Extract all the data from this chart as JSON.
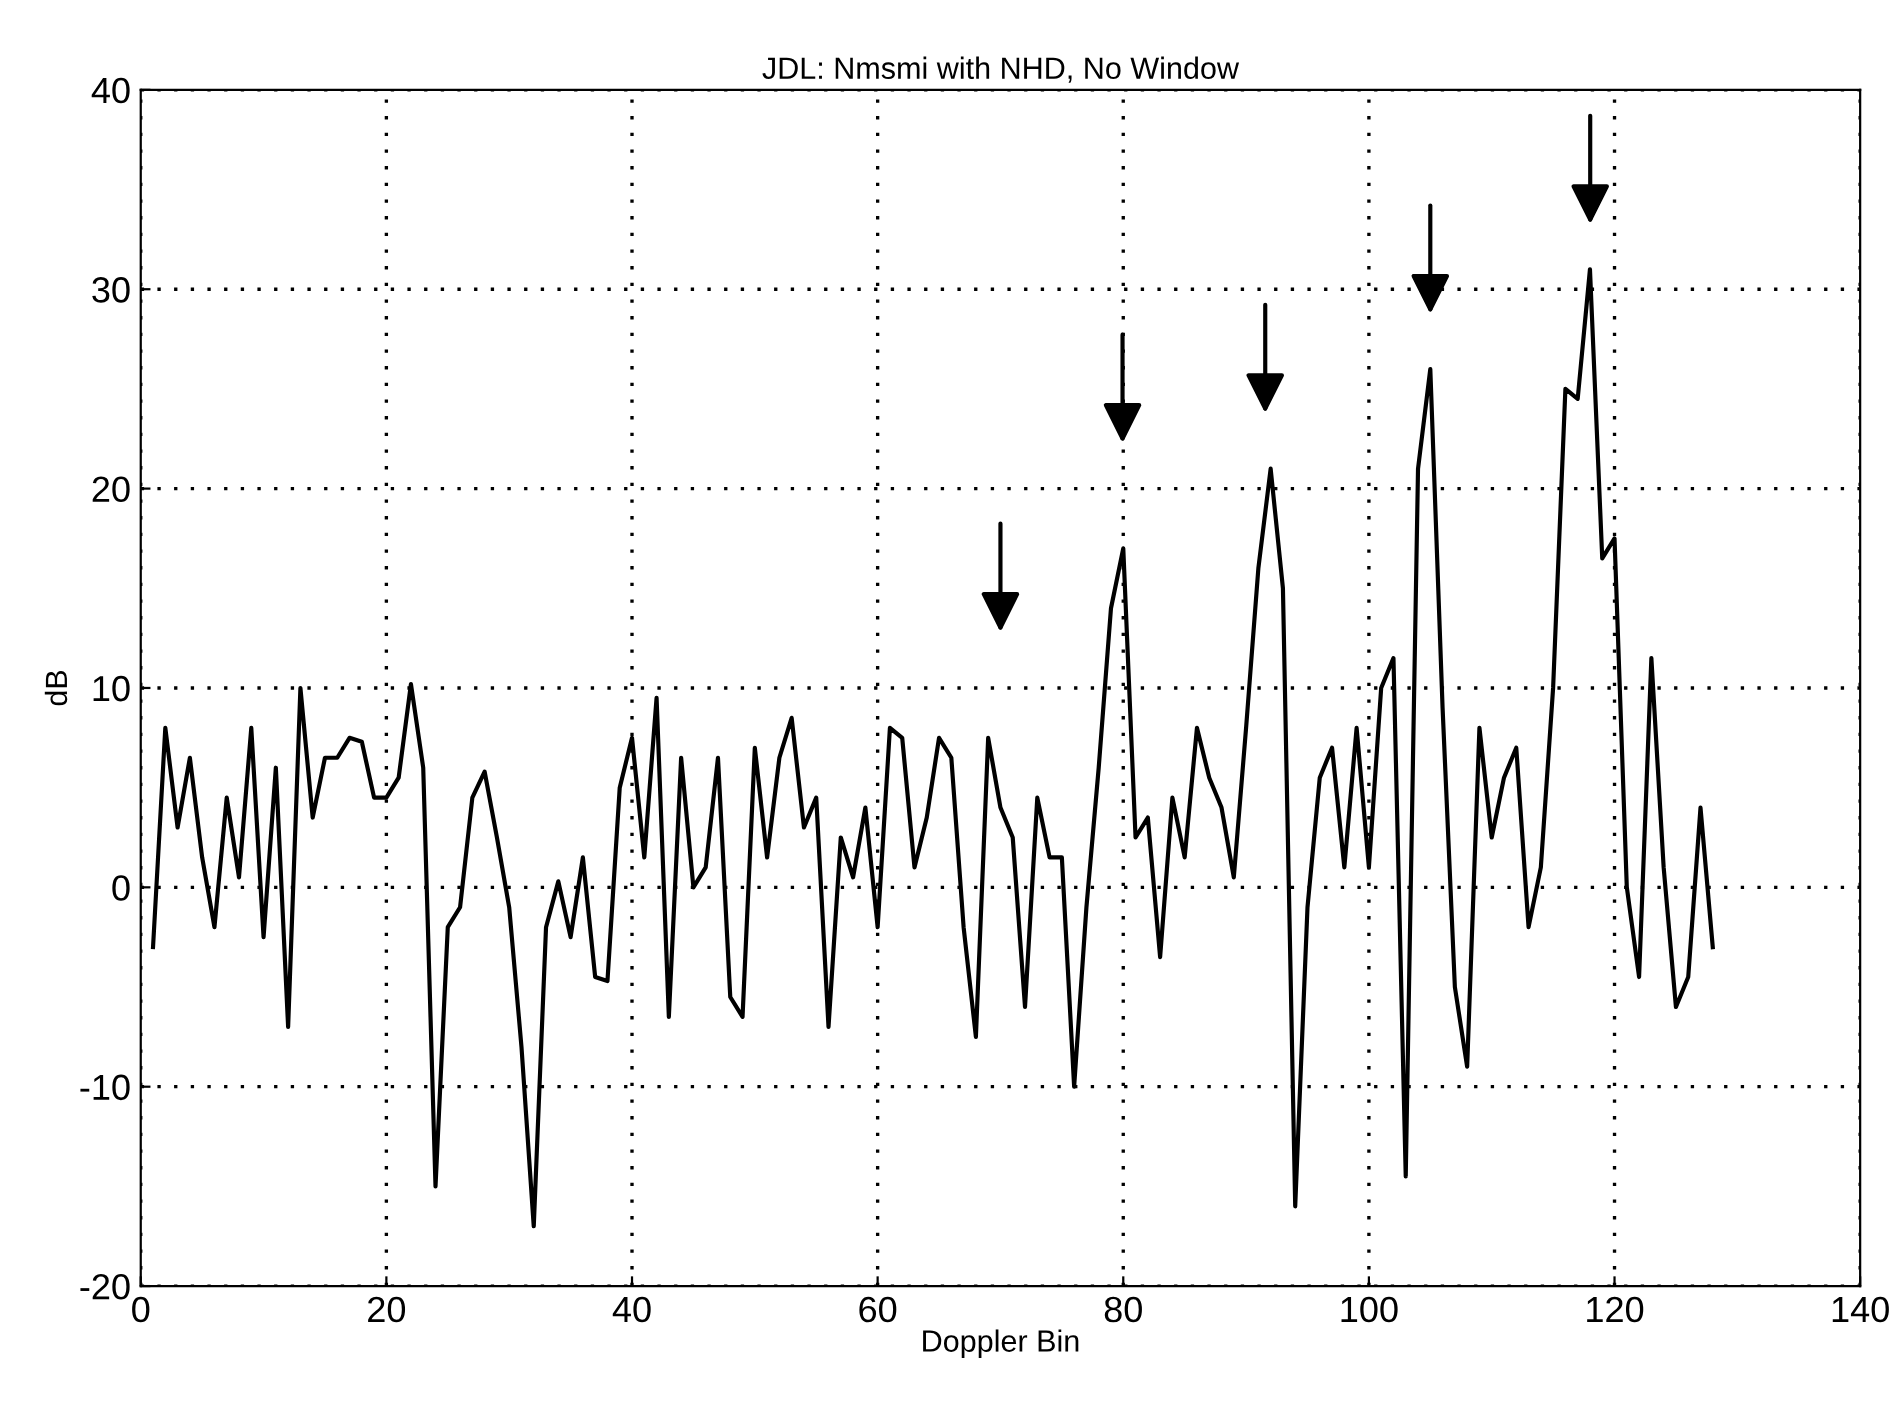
{
  "chart_data": {
    "type": "line",
    "title": "JDL: Nmsmi with NHD, No Window",
    "xlabel": "Doppler Bin",
    "ylabel": "dB",
    "x": [
      1,
      2,
      3,
      4,
      5,
      6,
      7,
      8,
      9,
      10,
      11,
      12,
      13,
      14,
      15,
      16,
      17,
      18,
      19,
      20,
      21,
      22,
      23,
      24,
      25,
      26,
      27,
      28,
      29,
      30,
      31,
      32,
      33,
      34,
      35,
      36,
      37,
      38,
      39,
      40,
      41,
      42,
      43,
      44,
      45,
      46,
      47,
      48,
      49,
      50,
      51,
      52,
      53,
      54,
      55,
      56,
      57,
      58,
      59,
      60,
      61,
      62,
      63,
      64,
      65,
      66,
      67,
      68,
      69,
      70,
      71,
      72,
      73,
      74,
      75,
      76,
      77,
      78,
      79,
      80,
      81,
      82,
      83,
      84,
      85,
      86,
      87,
      88,
      89,
      90,
      91,
      92,
      93,
      94,
      95,
      96,
      97,
      98,
      99,
      100,
      101,
      102,
      103,
      104,
      105,
      106,
      107,
      108,
      109,
      110,
      111,
      112,
      113,
      114,
      115,
      116,
      117,
      118,
      119,
      120,
      121,
      122,
      123,
      124,
      125,
      126,
      127,
      128
    ],
    "series": [
      {
        "color": "#000000",
        "values": [
          -3,
          8,
          3,
          6.5,
          1.5,
          -2,
          4.5,
          0.5,
          8,
          -2.5,
          6,
          -7,
          10,
          3.5,
          6.5,
          6.5,
          7.5,
          7.3,
          4.5,
          4.5,
          5.5,
          10.2,
          6,
          -15,
          -2,
          -1,
          4.5,
          5.8,
          2.5,
          -1,
          -8,
          -17,
          -2,
          0.3,
          -2.5,
          1.5,
          -4.5,
          -4.7,
          5,
          7.5,
          1.5,
          9.5,
          -6.5,
          6.5,
          0,
          1,
          6.5,
          -5.5,
          -6.5,
          7,
          1.5,
          6.5,
          8.5,
          3,
          4.5,
          -7,
          2.5,
          0.5,
          4,
          -2,
          8,
          7.5,
          1,
          3.5,
          7.5,
          6.5,
          -2,
          -7.5,
          7.5,
          4,
          2.5,
          -6,
          4.5,
          1.5,
          1.5,
          -10,
          -1,
          6,
          14,
          17,
          2.5,
          3.5,
          -3.5,
          4.5,
          1.5,
          8,
          5.5,
          4,
          0.5,
          8,
          16,
          21,
          15,
          -16,
          -1,
          5.5,
          7,
          1,
          8,
          1,
          10,
          11.5,
          -14.5,
          21,
          26,
          9,
          -5,
          -9,
          8,
          2.5,
          5.5,
          7,
          -2,
          1,
          10,
          25,
          24.5,
          31,
          16.5,
          17.5,
          0,
          -4.5,
          11.5,
          1,
          -6,
          -4.5,
          4,
          -3
        ]
      }
    ],
    "xlim": [
      0,
      140
    ],
    "xticks": [
      0,
      20,
      40,
      60,
      80,
      100,
      120,
      140
    ],
    "ylim": [
      -20,
      40
    ],
    "yticks": [
      -20,
      -10,
      0,
      10,
      20,
      30,
      40
    ],
    "grid": true,
    "marker": "none",
    "line_style": "solid"
  }
}
